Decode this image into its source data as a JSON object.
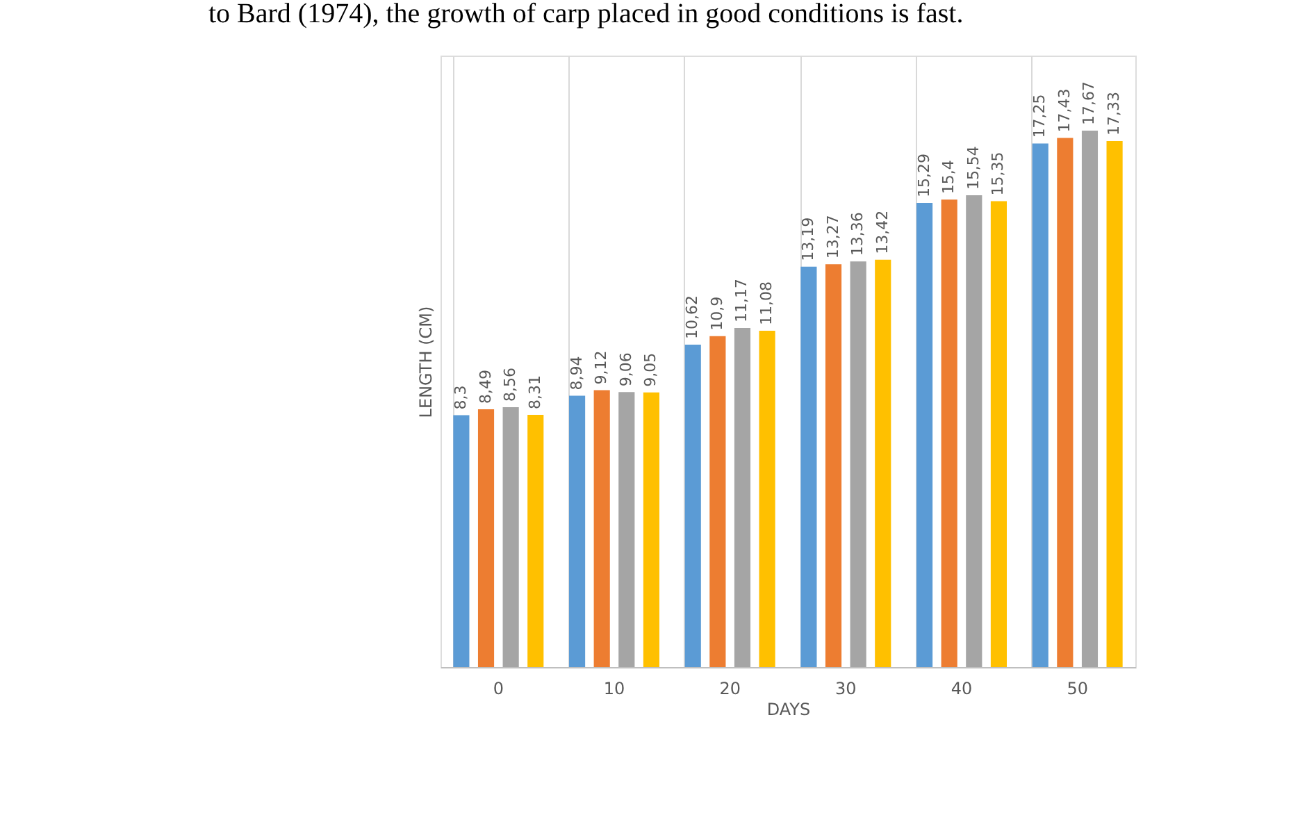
{
  "chart_data": {
    "type": "bar",
    "annotations": [
      "to Bard (1974), the growth of carp placed in good conditions is fast."
    ],
    "xlabel": "DAYS",
    "ylabel": "LENGTH (CM)",
    "categories": [
      "0",
      "10",
      "20",
      "30",
      "40",
      "50"
    ],
    "series": [
      {
        "color": "#5b9bd5",
        "values": [
          8.3,
          8.94,
          10.62,
          13.19,
          15.29,
          17.25
        ],
        "value_labels": [
          "8,3",
          "8,94",
          "10,62",
          "13,19",
          "15,29",
          "17,25"
        ]
      },
      {
        "color": "#ed7d31",
        "values": [
          8.49,
          9.12,
          10.9,
          13.27,
          15.4,
          17.43
        ],
        "value_labels": [
          "8,49",
          "9,12",
          "10,9",
          "13,27",
          "15,4",
          "17,43"
        ]
      },
      {
        "color": "#a5a5a5",
        "values": [
          8.56,
          9.06,
          11.17,
          13.36,
          15.54,
          17.67
        ],
        "value_labels": [
          "8,56",
          "9,06",
          "11,17",
          "13,36",
          "15,54",
          "17,67"
        ]
      },
      {
        "color": "#ffc000",
        "values": [
          8.31,
          9.05,
          11.08,
          13.42,
          15.35,
          17.33
        ],
        "value_labels": [
          "8,31",
          "9,05",
          "11,08",
          "13,42",
          "15,35",
          "17,33"
        ]
      }
    ],
    "grid": "x",
    "tick_labels": "x",
    "legend": false
  }
}
